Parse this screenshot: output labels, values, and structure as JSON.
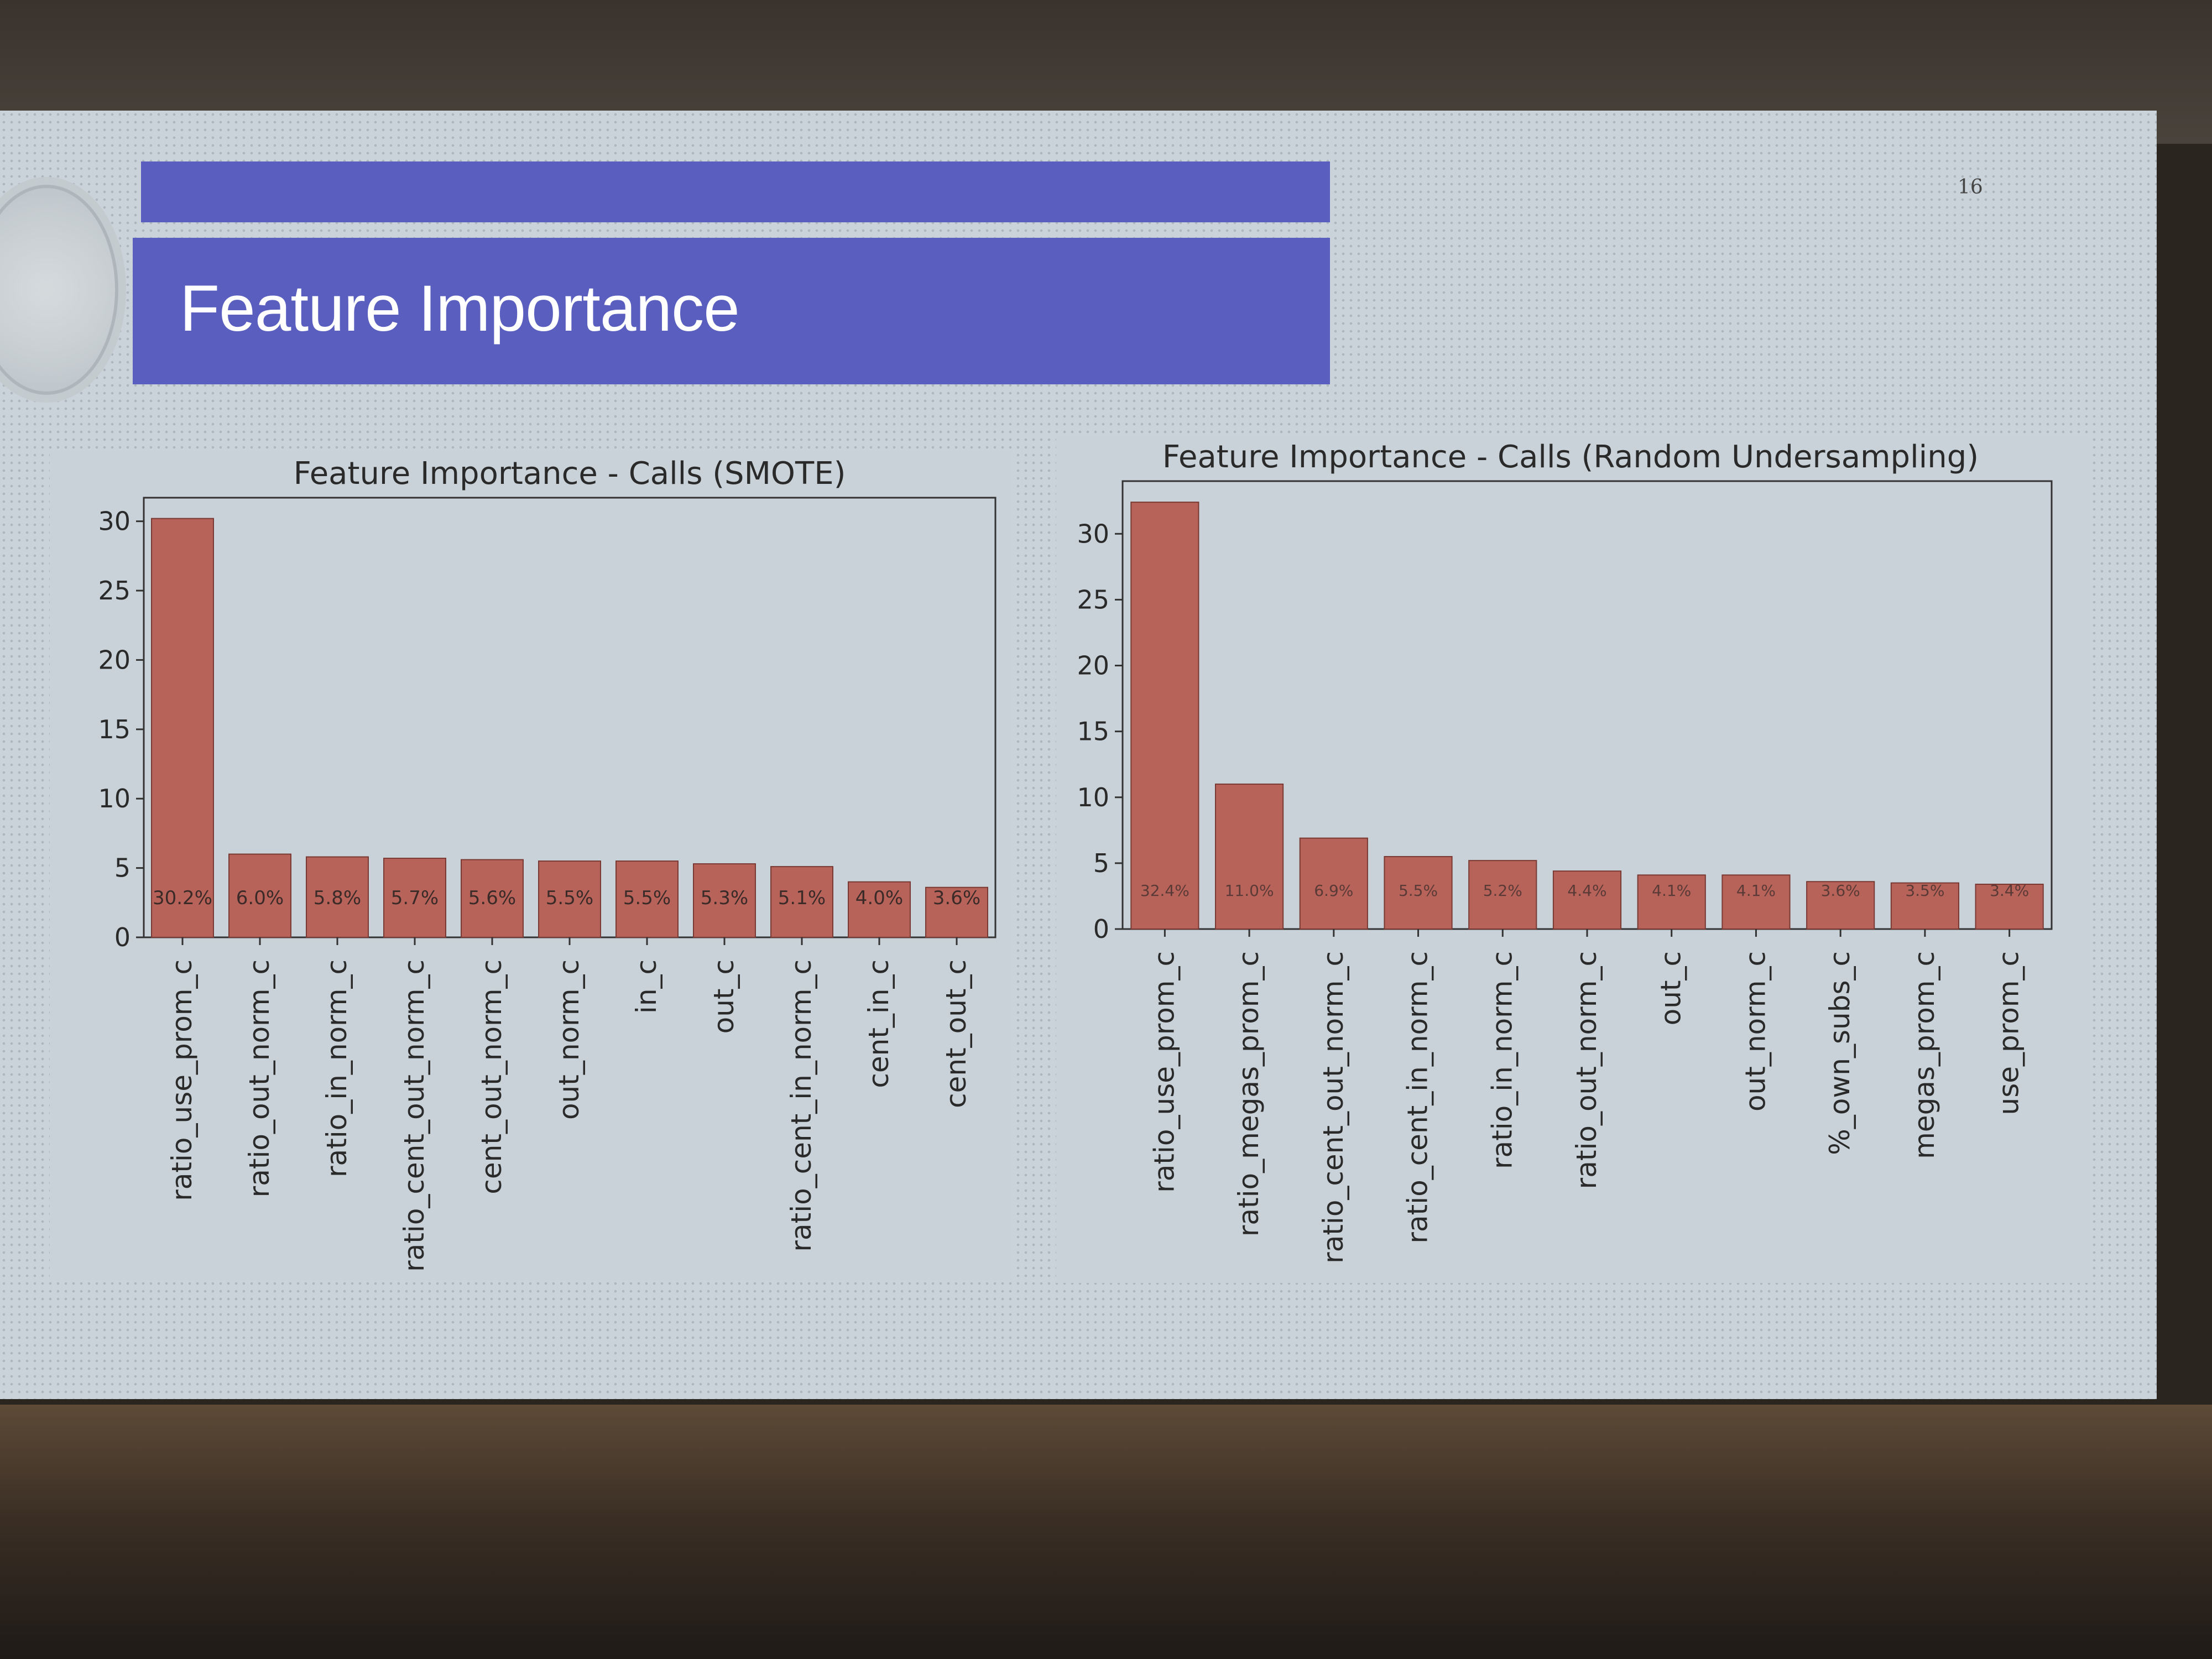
{
  "slide": {
    "title": "Feature Importance",
    "page_number": "16"
  },
  "colors": {
    "title_bar": "#5a5fbf",
    "bar": "#b8635a",
    "screen": "#c9d3d9"
  },
  "chart_data": [
    {
      "type": "bar",
      "title": "Feature Importance - Calls (SMOTE)",
      "xlabel": "",
      "ylabel": "",
      "ylim": [
        0,
        31.7
      ],
      "yticks": [
        0,
        5,
        10,
        15,
        20,
        25,
        30
      ],
      "categories": [
        "ratio_use_prom_c",
        "ratio_out_norm_c",
        "ratio_in_norm_c",
        "ratio_cent_out_norm_c",
        "cent_out_norm_c",
        "out_norm_c",
        "in_c",
        "out_c",
        "ratio_cent_in_norm_c",
        "cent_in_c",
        "cent_out_c"
      ],
      "values": [
        30.2,
        6.0,
        5.8,
        5.7,
        5.6,
        5.5,
        5.5,
        5.3,
        5.1,
        4.0,
        3.6
      ],
      "data_labels": [
        "30.2%",
        "6.0%",
        "5.8%",
        "5.7%",
        "5.6%",
        "5.5%",
        "5.5%",
        "5.3%",
        "5.1%",
        "4.0%",
        "3.6%"
      ],
      "grid": false,
      "legend": "none"
    },
    {
      "type": "bar",
      "title": "Feature Importance - Calls (Random Undersampling)",
      "xlabel": "",
      "ylabel": "",
      "ylim": [
        0,
        34
      ],
      "yticks": [
        0,
        5,
        10,
        15,
        20,
        25,
        30
      ],
      "categories": [
        "ratio_use_prom_c",
        "ratio_megas_prom_c",
        "ratio_cent_out_norm_c",
        "ratio_cent_in_norm_c",
        "ratio_in_norm_c",
        "ratio_out_norm_c",
        "out_c",
        "out_norm_c",
        "%_own_subs_c",
        "megas_prom_c",
        "use_prom_c"
      ],
      "values": [
        32.4,
        11.0,
        6.9,
        5.5,
        5.2,
        4.4,
        4.1,
        4.1,
        3.6,
        3.5,
        3.4
      ],
      "data_labels": [
        "32.4%",
        "11.0%",
        "6.9%",
        "5.5%",
        "5.2%",
        "4.4%",
        "4.1%",
        "4.1%",
        "3.6%",
        "3.5%",
        "3.4%"
      ],
      "grid": false,
      "legend": "none"
    }
  ]
}
